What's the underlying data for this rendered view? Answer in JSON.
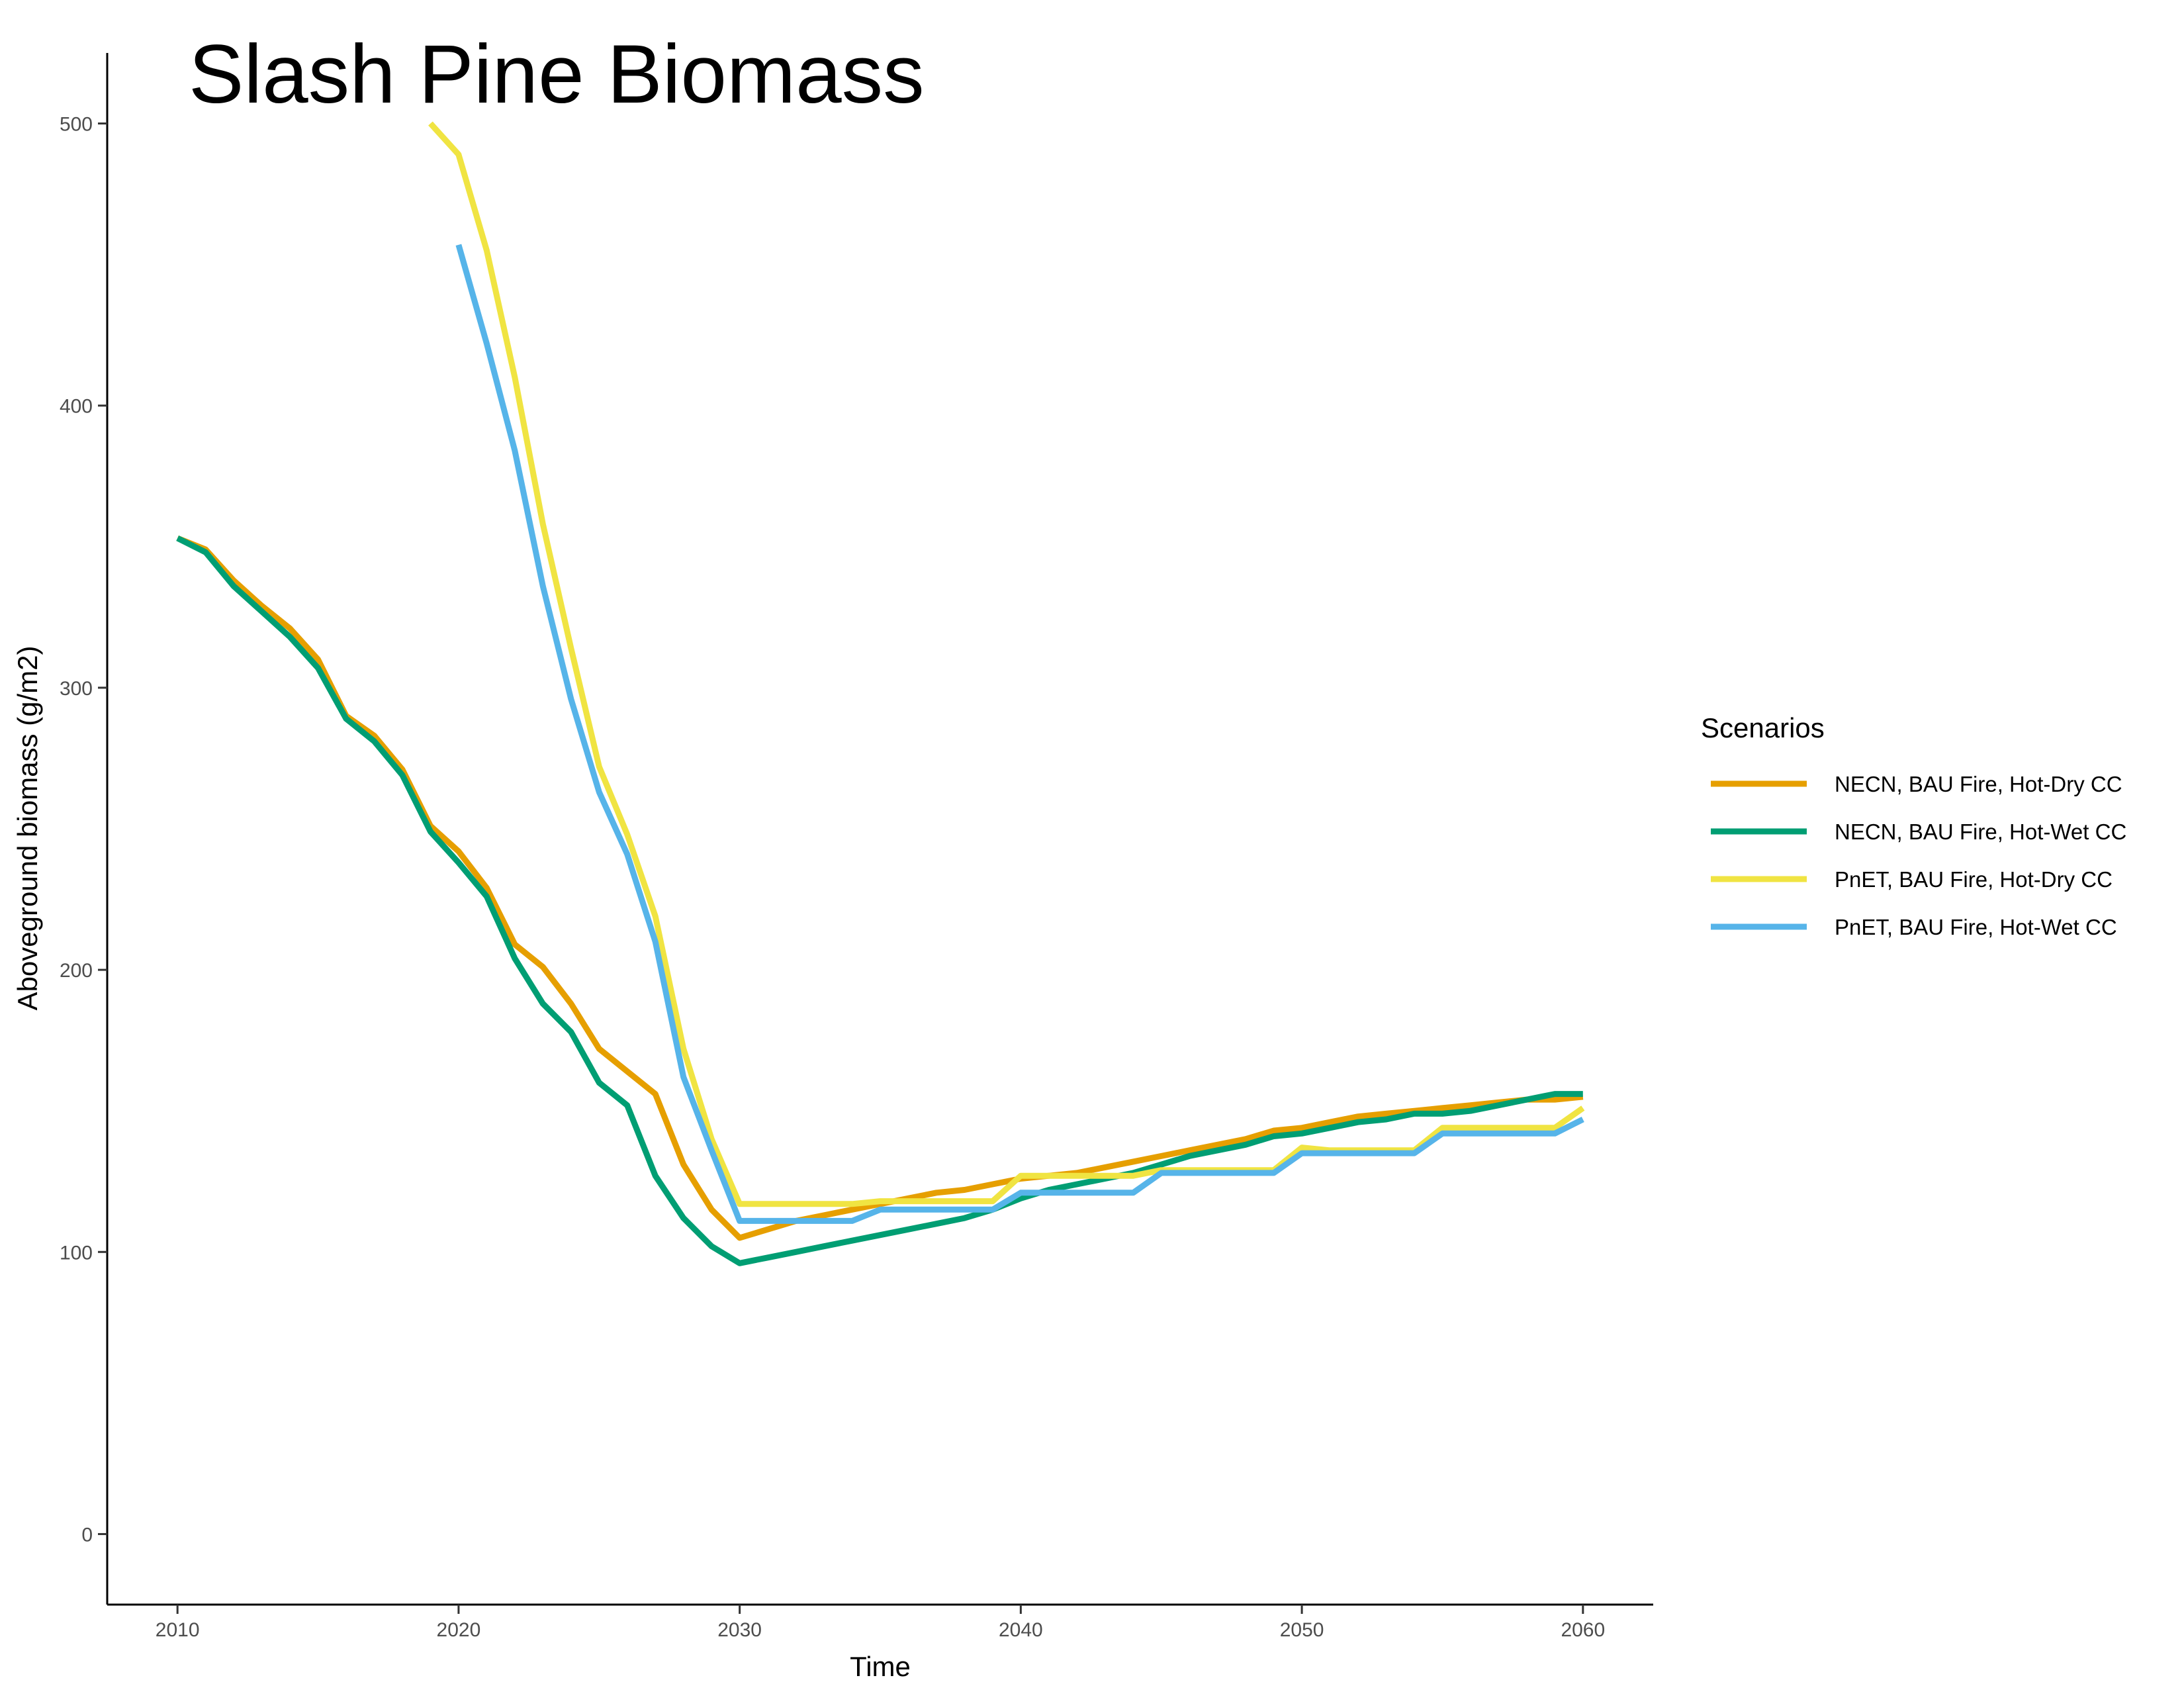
{
  "chart_data": {
    "type": "line",
    "title": "Slash Pine Biomass",
    "xlabel": "Time",
    "ylabel": "Aboveground biomass (g/m2)",
    "xlim": [
      2007.5,
      2062.5
    ],
    "ylim": [
      -25,
      525
    ],
    "xticks": [
      2010,
      2020,
      2030,
      2040,
      2050,
      2060
    ],
    "yticks": [
      0,
      100,
      200,
      300,
      400,
      500
    ],
    "grid": false,
    "legend": {
      "title": "Scenarios",
      "position": "right"
    },
    "series": [
      {
        "name": "NECN, BAU Fire, Hot-Dry CC",
        "color": "#E69F00",
        "x": [
          2010,
          2011,
          2012,
          2013,
          2014,
          2015,
          2016,
          2017,
          2018,
          2019,
          2020,
          2021,
          2022,
          2023,
          2024,
          2025,
          2026,
          2027,
          2028,
          2029,
          2030,
          2031,
          2032,
          2033,
          2034,
          2035,
          2036,
          2037,
          2038,
          2039,
          2040,
          2041,
          2042,
          2043,
          2044,
          2045,
          2046,
          2047,
          2048,
          2049,
          2050,
          2051,
          2052,
          2053,
          2054,
          2055,
          2056,
          2057,
          2058,
          2059,
          2060
        ],
        "y": [
          353,
          349,
          338,
          329,
          321,
          310,
          290,
          283,
          271,
          251,
          242,
          229,
          209,
          201,
          188,
          172,
          164,
          156,
          131,
          115,
          105,
          108,
          111,
          113,
          115,
          117,
          119,
          121,
          122,
          124,
          126,
          127,
          128,
          130,
          132,
          134,
          136,
          138,
          140,
          143,
          144,
          146,
          148,
          149,
          150,
          151,
          152,
          153,
          154,
          154,
          155
        ]
      },
      {
        "name": "NECN, BAU Fire, Hot-Wet CC",
        "color": "#009E73",
        "x": [
          2010,
          2011,
          2012,
          2013,
          2014,
          2015,
          2016,
          2017,
          2018,
          2019,
          2020,
          2021,
          2022,
          2023,
          2024,
          2025,
          2026,
          2027,
          2028,
          2029,
          2030,
          2031,
          2032,
          2033,
          2034,
          2035,
          2036,
          2037,
          2038,
          2039,
          2040,
          2041,
          2042,
          2043,
          2044,
          2045,
          2046,
          2047,
          2048,
          2049,
          2050,
          2051,
          2052,
          2053,
          2054,
          2055,
          2056,
          2057,
          2058,
          2059,
          2060
        ],
        "y": [
          353,
          348,
          336,
          327,
          318,
          307,
          289,
          281,
          269,
          249,
          238,
          226,
          204,
          188,
          178,
          160,
          152,
          127,
          112,
          102,
          96,
          98,
          100,
          102,
          104,
          106,
          108,
          110,
          112,
          115,
          119,
          122,
          124,
          126,
          128,
          131,
          134,
          136,
          138,
          141,
          142,
          144,
          146,
          147,
          149,
          149,
          150,
          152,
          154,
          156,
          156
        ]
      },
      {
        "name": "PnET, BAU Fire, Hot-Dry CC",
        "color": "#F0E442",
        "x": [
          2019,
          2020,
          2021,
          2022,
          2023,
          2024,
          2025,
          2026,
          2027,
          2028,
          2029,
          2030,
          2031,
          2032,
          2033,
          2034,
          2035,
          2036,
          2037,
          2038,
          2039,
          2040,
          2041,
          2042,
          2043,
          2044,
          2045,
          2046,
          2047,
          2048,
          2049,
          2050,
          2051,
          2052,
          2053,
          2054,
          2055,
          2056,
          2057,
          2058,
          2059,
          2060
        ],
        "y": [
          500,
          489,
          455,
          410,
          358,
          314,
          272,
          248,
          219,
          172,
          140,
          117,
          117,
          117,
          117,
          117,
          118,
          118,
          118,
          118,
          118,
          127,
          127,
          127,
          127,
          127,
          129,
          129,
          129,
          129,
          129,
          137,
          136,
          136,
          136,
          136,
          144,
          144,
          144,
          144,
          144,
          151
        ]
      },
      {
        "name": "PnET, BAU Fire, Hot-Wet CC",
        "color": "#56B4E9",
        "x": [
          2020,
          2021,
          2022,
          2023,
          2024,
          2025,
          2026,
          2027,
          2028,
          2029,
          2030,
          2031,
          2032,
          2033,
          2034,
          2035,
          2036,
          2037,
          2038,
          2039,
          2040,
          2041,
          2042,
          2043,
          2044,
          2045,
          2046,
          2047,
          2048,
          2049,
          2050,
          2051,
          2052,
          2053,
          2054,
          2055,
          2056,
          2057,
          2058,
          2059,
          2060
        ],
        "y": [
          457,
          422,
          384,
          336,
          296,
          263,
          241,
          210,
          162,
          136,
          111,
          111,
          111,
          111,
          111,
          115,
          115,
          115,
          115,
          115,
          121,
          121,
          121,
          121,
          121,
          128,
          128,
          128,
          128,
          128,
          135,
          135,
          135,
          135,
          135,
          142,
          142,
          142,
          142,
          142,
          147
        ]
      }
    ]
  }
}
